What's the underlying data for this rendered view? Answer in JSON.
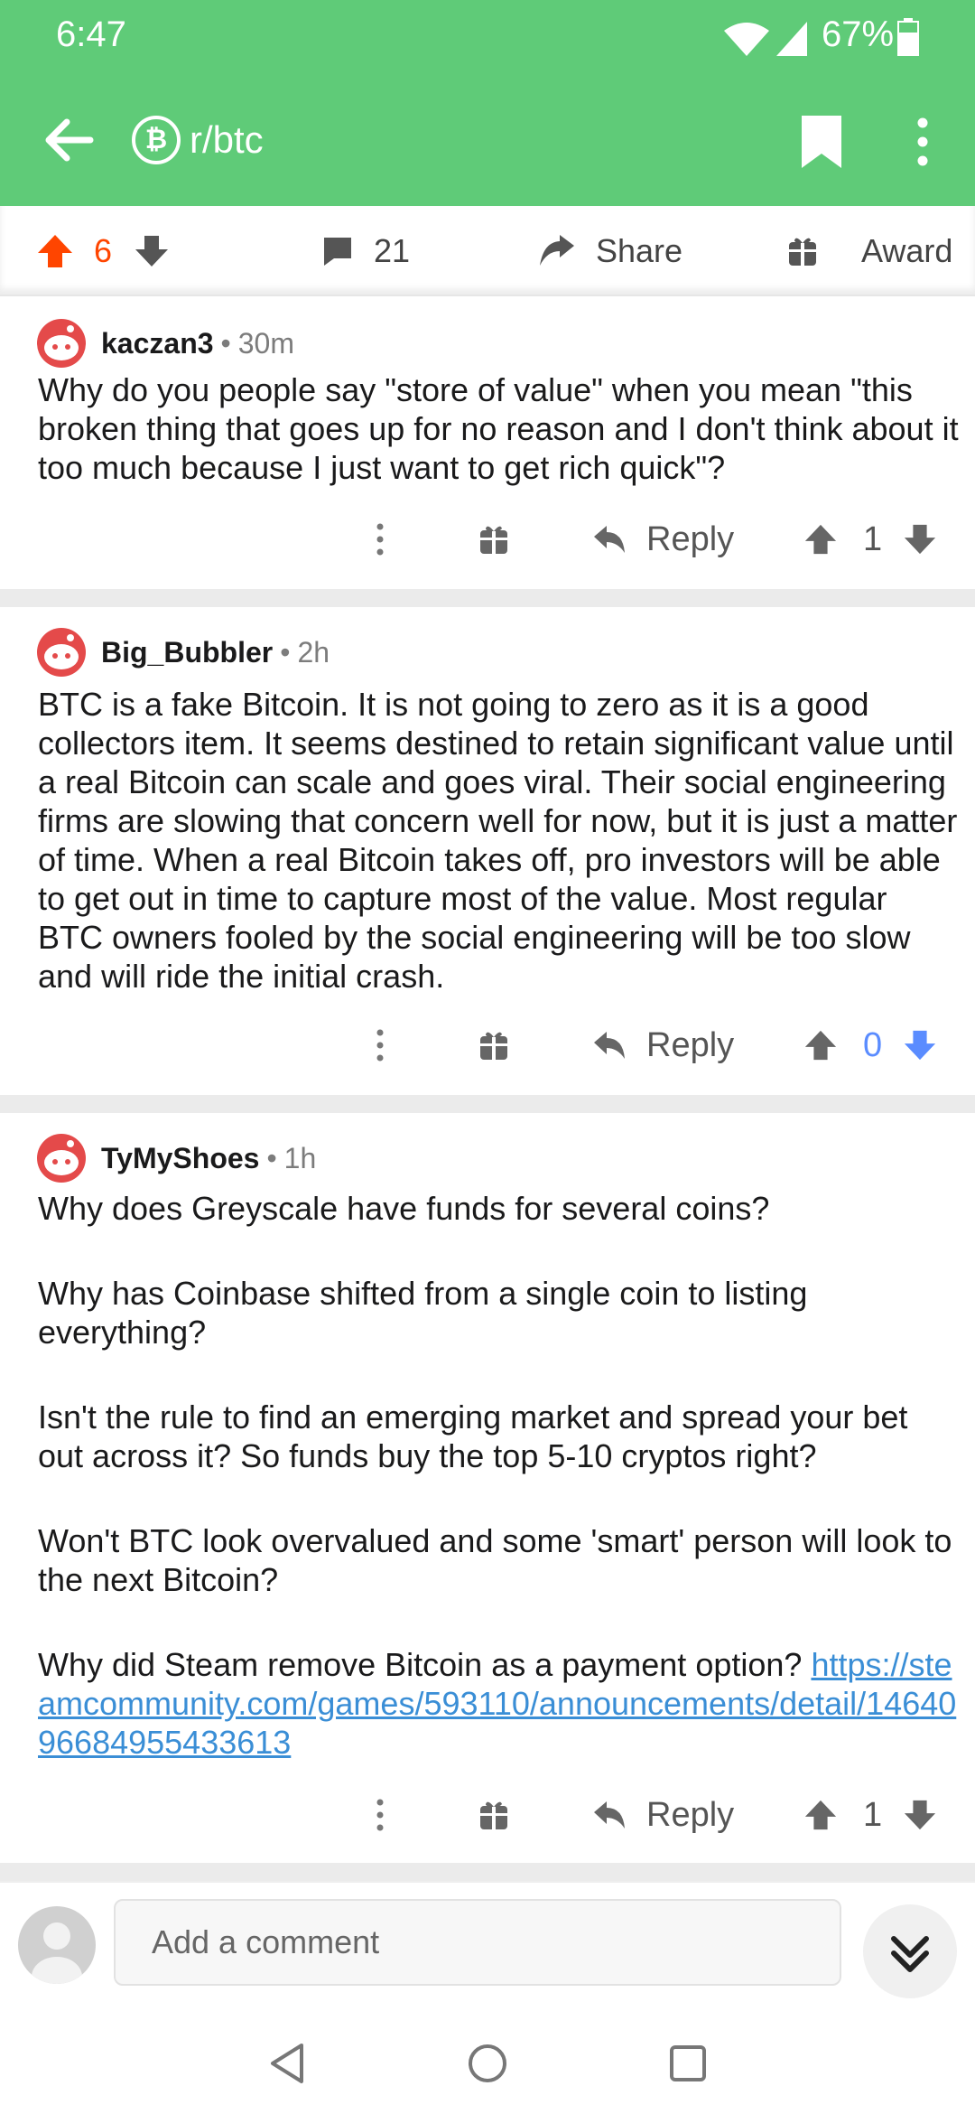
{
  "status_bar": {
    "time": "6:47",
    "battery": "67%"
  },
  "toolbar": {
    "subreddit": "r/btc",
    "badge_glyph": "₿"
  },
  "post_bar": {
    "score": "6",
    "comments": "21",
    "share_label": "Share",
    "award_label": "Award"
  },
  "comments": [
    {
      "author": "kaczan3",
      "time": "30m",
      "paragraphs": [
        "Why do you people say \"store of value\" when you mean \"this broken thing that goes up for no reason and I don't think about it too much because I just want to get rich quick\"?"
      ],
      "reply_label": "Reply",
      "score": "1"
    },
    {
      "author": "Big_Bubbler",
      "time": "2h",
      "paragraphs": [
        "BTC is a fake Bitcoin. It is not going to zero as it is a good collectors item. It seems destined to retain significant value until a real Bitcoin can scale and goes viral. Their social engineering firms are slowing that concern well for now, but it is just a matter of time. When a real Bitcoin takes off, pro investors will be able to get out in time to capture most of the value. Most regular BTC owners fooled by the social engineering will be too slow and will ride the initial crash."
      ],
      "reply_label": "Reply",
      "score": "0"
    },
    {
      "author": "TyMyShoes",
      "time": "1h",
      "paragraphs": [
        "Why does Greyscale have funds for several coins?",
        "Why has Coinbase shifted from a single coin to listing everything?",
        "Isn't the rule to find an emerging market and spread your bet out across it? So funds buy the top 5-10 cryptos right?",
        "Won't BTC look overvalued and some 'smart' person will look to the next Bitcoin?",
        "Why did Steam remove Bitcoin as a payment option?"
      ],
      "link": "https://steamcommunity.com/games/593110/announcements/detail/1464096684955433613",
      "reply_label": "Reply",
      "score": "1"
    }
  ],
  "composer": {
    "placeholder": "Add a comment"
  },
  "colors": {
    "accent": "#5fcb78",
    "upvote": "#ff4500",
    "downvote": "#5a8cff",
    "link": "#3a8ed6"
  }
}
